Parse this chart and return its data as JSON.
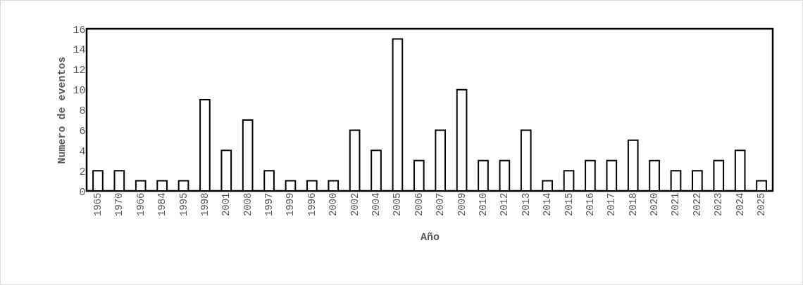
{
  "chart_data": {
    "type": "bar",
    "xlabel": "Año",
    "ylabel": "Numero de eventos",
    "categories": [
      "1965",
      "1970",
      "1966",
      "1984",
      "1995",
      "1998",
      "2001",
      "2008",
      "1997",
      "1999",
      "1996",
      "2000",
      "2002",
      "2004",
      "2005",
      "2006",
      "2007",
      "2009",
      "2010",
      "2012",
      "2013",
      "2014",
      "2015",
      "2016",
      "2017",
      "2018",
      "2020",
      "2021",
      "2022",
      "2023",
      "2024",
      "2025"
    ],
    "values": [
      2,
      2,
      1,
      1,
      1,
      9,
      4,
      7,
      2,
      1,
      1,
      1,
      6,
      4,
      15,
      3,
      6,
      10,
      3,
      3,
      6,
      1,
      2,
      3,
      3,
      5,
      3,
      2,
      2,
      3,
      4,
      1
    ],
    "color": "#ffffff",
    "ylim": [
      0,
      16
    ],
    "yticks": [
      0,
      2,
      4,
      6,
      8,
      10,
      12,
      14,
      16
    ]
  }
}
